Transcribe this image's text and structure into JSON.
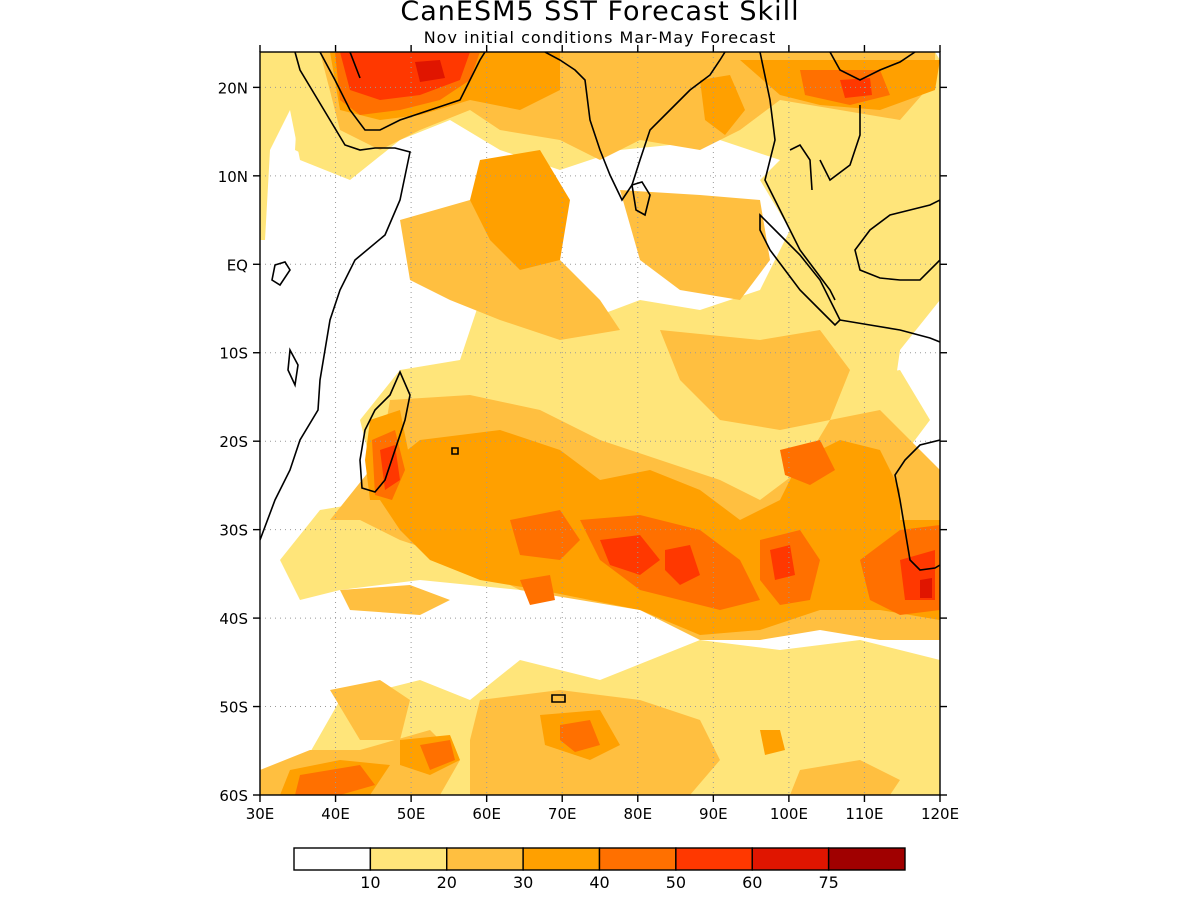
{
  "title": "CanESM5 SST Forecast Skill",
  "subtitle": "Nov initial conditions  Mar-May Forecast",
  "map": {
    "lon_range": [
      30,
      120
    ],
    "lat_range": [
      -60,
      24
    ],
    "lat_ticks": [
      {
        "value": 20,
        "label": "20N"
      },
      {
        "value": 10,
        "label": "10N"
      },
      {
        "value": 0,
        "label": "EQ"
      },
      {
        "value": -10,
        "label": "10S"
      },
      {
        "value": -20,
        "label": "20S"
      },
      {
        "value": -30,
        "label": "30S"
      },
      {
        "value": -40,
        "label": "40S"
      },
      {
        "value": -50,
        "label": "50S"
      },
      {
        "value": -60,
        "label": "60S"
      }
    ],
    "lon_ticks": [
      {
        "value": 30,
        "label": "30E"
      },
      {
        "value": 40,
        "label": "40E"
      },
      {
        "value": 50,
        "label": "50E"
      },
      {
        "value": 60,
        "label": "60E"
      },
      {
        "value": 70,
        "label": "70E"
      },
      {
        "value": 80,
        "label": "80E"
      },
      {
        "value": 90,
        "label": "90E"
      },
      {
        "value": 100,
        "label": "100E"
      },
      {
        "value": 110,
        "label": "110E"
      },
      {
        "value": 120,
        "label": "120E"
      }
    ],
    "grid": true
  },
  "colorbar": {
    "colors": [
      "#ffffff",
      "#ffe57a",
      "#ffbf40",
      "#ffa000",
      "#ff7000",
      "#ff3800",
      "#e01500",
      "#a00000"
    ],
    "labels": [
      "10",
      "20",
      "30",
      "40",
      "50",
      "60",
      "75"
    ]
  }
}
